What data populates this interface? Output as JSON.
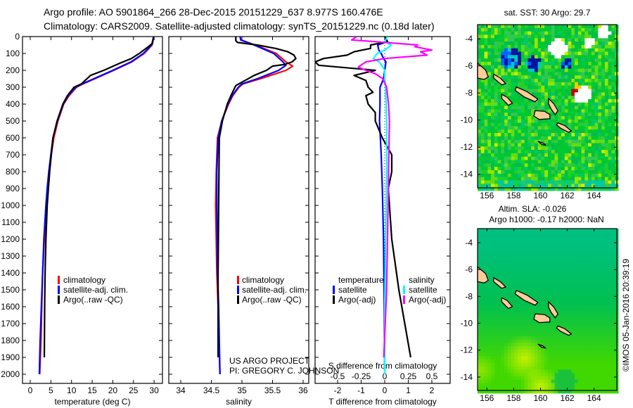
{
  "title": {
    "line1": "Argo profile: AO 5901864_266 28-Dec-2015 20151229_637 8.977S 160.476E",
    "line2": "Climatology: CARS2009. Satellite-adjusted climatology: synTS_20151229.nc (0.18d later)"
  },
  "depth_ticks": [
    "0",
    "100",
    "200",
    "300",
    "400",
    "500",
    "600",
    "700",
    "800",
    "900",
    "1000",
    "1100",
    "1200",
    "1300",
    "1400",
    "1500",
    "1600",
    "1700",
    "1800",
    "1900",
    "2000"
  ],
  "legend_profiles": [
    "climatology",
    "satellite-adj. clim.",
    "Argo(..raw -QC)"
  ],
  "legend_diff": {
    "temperature": "temperature",
    "salinity": "salinity",
    "t_satellite": "satellite",
    "t_argo": "Argo(-adj)",
    "s_satellite": "satellite",
    "s_argo": "Argo(-adj)"
  },
  "credits": {
    "project": "US ARGO PROJECT",
    "pi": "PI: GREGORY C. JOHNSON"
  },
  "timestamp": "©IMOS 05-Jan-2016 20:39:19",
  "colors": {
    "climatology": "#ff0000",
    "satellite": "#0000ff",
    "argo": "#000000",
    "s_satellite": "#00ffff",
    "s_argo": "#ff00ff",
    "land": "#ffcc99"
  },
  "chart_data": [
    {
      "type": "line",
      "xlabel": "temperature (deg C)",
      "ylabel": "depth",
      "xlim": [
        -2,
        32
      ],
      "ylim": [
        2060,
        0
      ],
      "xticks": [
        "0",
        "5",
        "10",
        "15",
        "20",
        "25",
        "30"
      ],
      "series": [
        {
          "name": "climatology",
          "color": "#ff0000",
          "depth": [
            0,
            50,
            100,
            150,
            200,
            250,
            280,
            300,
            350,
            400,
            500,
            600,
            700,
            800,
            900,
            1000,
            1200,
            1400,
            1600,
            1800,
            2000
          ],
          "values": [
            29.9,
            29.5,
            27.6,
            24.6,
            20.2,
            15.6,
            12.8,
            11.2,
            9.4,
            8.1,
            6.7,
            5.7,
            5.1,
            4.6,
            4.3,
            3.9,
            3.4,
            3.0,
            2.8,
            2.6,
            2.3
          ]
        },
        {
          "name": "satellite-adj. clim.",
          "color": "#0000ff",
          "depth": [
            0,
            50,
            100,
            150,
            200,
            250,
            280,
            300,
            350,
            400,
            500,
            600,
            700,
            800,
            900,
            1000,
            1200,
            1400,
            1600,
            1800,
            2000
          ],
          "values": [
            29.9,
            29.4,
            27.4,
            24.4,
            20.0,
            15.4,
            12.6,
            11.0,
            9.2,
            8.0,
            6.6,
            5.5,
            5.0,
            4.5,
            4.1,
            3.8,
            3.3,
            3.0,
            2.7,
            2.4,
            2.2
          ]
        },
        {
          "name": "Argo(..raw -QC)",
          "color": "#000000",
          "depth": [
            0,
            40,
            60,
            100,
            130,
            160,
            200,
            230,
            280,
            300,
            350,
            400,
            500,
            600,
            800,
            1000,
            1200,
            1400,
            1600,
            1900
          ],
          "values": [
            29.9,
            29.6,
            28.6,
            26.4,
            24.5,
            21.5,
            17.8,
            14.6,
            12.4,
            10.6,
            9.0,
            7.9,
            6.5,
            5.5,
            4.7,
            4.1,
            3.8,
            3.6,
            3.5,
            3.4
          ]
        }
      ]
    },
    {
      "type": "line",
      "xlabel": "salinity",
      "ylabel": "depth",
      "xlim": [
        33.8,
        36.1
      ],
      "ylim": [
        2060,
        0
      ],
      "xticks": [
        "34",
        "34.5",
        "35",
        "35.5",
        "36"
      ],
      "series": [
        {
          "name": "climatology",
          "color": "#ff0000",
          "depth": [
            0,
            20,
            50,
            100,
            150,
            175,
            200,
            250,
            280,
            300,
            350,
            400,
            500,
            600,
            800,
            1000,
            1400,
            1600,
            2000
          ],
          "values": [
            34.97,
            34.98,
            35.22,
            35.56,
            35.72,
            35.83,
            35.72,
            35.3,
            35.02,
            34.95,
            34.85,
            34.78,
            34.67,
            34.6,
            34.58,
            34.57,
            34.59,
            34.61,
            34.64
          ]
        },
        {
          "name": "satellite-adj. clim.",
          "color": "#0000ff",
          "depth": [
            0,
            20,
            50,
            100,
            150,
            170,
            200,
            250,
            280,
            300,
            350,
            400,
            500,
            600,
            800,
            1000,
            1400,
            1600,
            2000
          ],
          "values": [
            34.97,
            34.98,
            35.2,
            35.52,
            35.67,
            35.72,
            35.6,
            35.25,
            35.0,
            34.94,
            34.84,
            34.77,
            34.67,
            34.61,
            34.59,
            34.59,
            34.6,
            34.62,
            34.64
          ]
        },
        {
          "name": "Argo(..raw -QC)",
          "color": "#000000",
          "depth": [
            0,
            25,
            35,
            50,
            70,
            90,
            110,
            130,
            150,
            165,
            175,
            200,
            230,
            270,
            290,
            350,
            400,
            500,
            600,
            1000,
            1400,
            1900
          ],
          "values": [
            34.9,
            34.9,
            34.93,
            35.25,
            35.55,
            35.75,
            35.85,
            35.88,
            35.82,
            35.7,
            35.5,
            35.4,
            35.2,
            35.0,
            34.9,
            34.82,
            34.76,
            34.68,
            34.63,
            34.62,
            34.61,
            34.61
          ]
        }
      ]
    },
    {
      "type": "line",
      "xlabel": "T difference from climatology",
      "x2label": "S difference from climatology",
      "ylabel": "depth",
      "xlim": [
        -2.95,
        2.8
      ],
      "x2lim": [
        -0.74,
        0.7
      ],
      "ylim": [
        2060,
        0
      ],
      "xticks": [
        "-2",
        "-1",
        "0",
        "1",
        "2"
      ],
      "x2ticks": [
        "-0.5",
        "-0.25",
        "0",
        "0.25",
        "0.5"
      ],
      "series": [
        {
          "name": "temperature satellite",
          "axis": "T",
          "color": "#0000ff",
          "depth": [
            0,
            30,
            50,
            80,
            100,
            130,
            150,
            200,
            250,
            300,
            400,
            500,
            700,
            900,
            1200,
            1600,
            2000
          ],
          "values": [
            0.0,
            0.1,
            -0.3,
            -0.25,
            -0.15,
            -0.05,
            0.05,
            0.0,
            -0.05,
            -0.2,
            -0.2,
            -0.22,
            -0.15,
            -0.1,
            -0.05,
            -0.02,
            0.0
          ]
        },
        {
          "name": "temperature Argo(-adj)",
          "axis": "T",
          "color": "#000000",
          "depth": [
            0,
            30,
            50,
            70,
            90,
            110,
            130,
            150,
            170,
            200,
            210,
            230,
            260,
            300,
            330,
            350,
            400,
            450,
            500,
            600,
            700,
            800,
            900,
            1000,
            1200,
            1500,
            1900
          ],
          "values": [
            0.0,
            0.12,
            -0.6,
            -0.6,
            -1.3,
            -1.6,
            -2.6,
            -2.95,
            -2.8,
            -0.4,
            -0.7,
            -1.3,
            -0.8,
            -0.7,
            -0.5,
            -0.8,
            -0.7,
            -0.4,
            -0.4,
            -0.1,
            0.3,
            0.3,
            0.15,
            0.2,
            0.3,
            0.6,
            1.1
          ]
        },
        {
          "name": "salinity satellite",
          "axis": "S",
          "color": "#00ffff",
          "depth": [
            0,
            30,
            50,
            80,
            100,
            130,
            150,
            180,
            200,
            250,
            300,
            500,
            800,
            1200,
            1600,
            2000
          ],
          "values": [
            0.03,
            0.0,
            0.07,
            0.0,
            -0.08,
            -0.12,
            -0.06,
            -0.02,
            0.0,
            0.0,
            0.01,
            0.02,
            0.02,
            0.01,
            0.0,
            0.0
          ]
        },
        {
          "name": "salinity Argo(-adj)",
          "axis": "S",
          "color": "#ff00ff",
          "depth": [
            0,
            20,
            30,
            50,
            60,
            80,
            90,
            110,
            130,
            150,
            180,
            200,
            220,
            250,
            300,
            400,
            500,
            800,
            1200,
            1500,
            1900
          ],
          "values": [
            -0.3,
            -0.35,
            -0.1,
            0.35,
            0.32,
            0.5,
            0.38,
            0.45,
            0.0,
            -0.2,
            -0.28,
            -0.2,
            -0.1,
            -0.02,
            0.02,
            0.04,
            0.05,
            0.04,
            0.03,
            0.02,
            -0.01
          ]
        }
      ]
    }
  ],
  "maps": [
    {
      "title": "sat. SST: 30 Argo: 29.7",
      "lat_ticks": [
        "-4",
        "-6",
        "-8",
        "-10",
        "-12",
        "-14"
      ],
      "lon_ticks": [
        "156",
        "158",
        "160",
        "162",
        "164"
      ]
    },
    {
      "title": "Altim. SLA: -0.026",
      "subtitle": "Argo h1000: -0.17 h2000: NaN",
      "lat_ticks": [
        "-4",
        "-6",
        "-8",
        "-10",
        "-12",
        "-14"
      ],
      "lon_ticks": [
        "156",
        "158",
        "160",
        "162",
        "164"
      ]
    }
  ]
}
